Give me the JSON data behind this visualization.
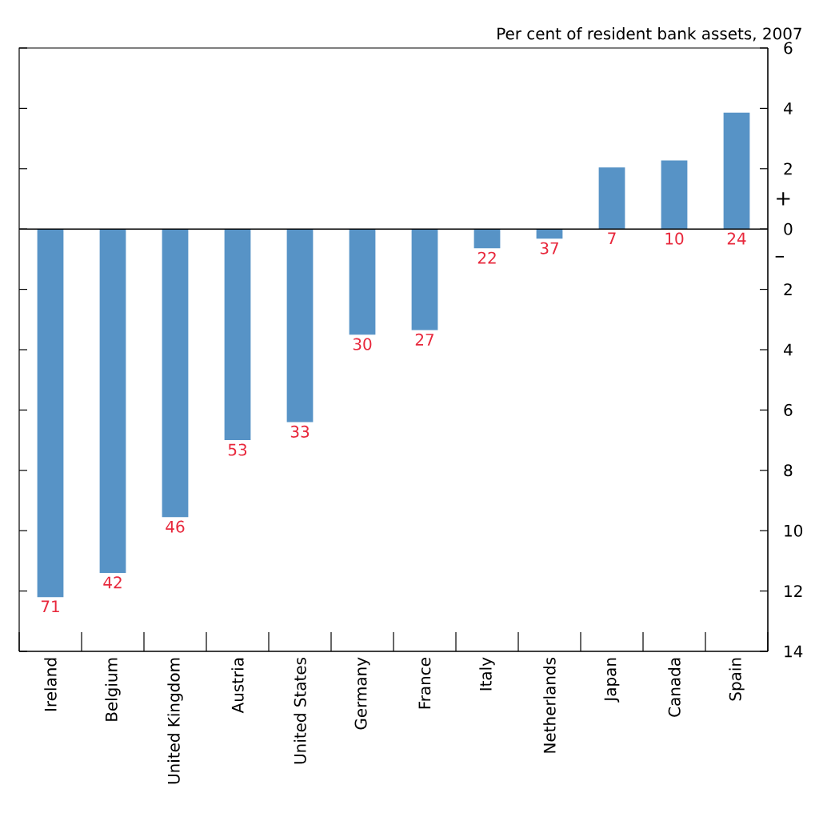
{
  "chart_data": {
    "type": "bar",
    "subtitle": "Per cent of resident bank assets, 2007",
    "categories": [
      "Ireland",
      "Belgium",
      "United Kingdom",
      "Austria",
      "United States",
      "Germany",
      "France",
      "Italy",
      "Netherlands",
      "Japan",
      "Canada",
      "Spain"
    ],
    "values": [
      -12.2,
      -11.4,
      -9.55,
      -7.0,
      -6.4,
      -3.5,
      -3.35,
      -0.64,
      -0.32,
      2.04,
      2.27,
      3.86
    ],
    "color": "#5793c6",
    "ylim": [
      -14,
      6
    ],
    "yticks": [
      6,
      4,
      2,
      0,
      {
        "value": -2,
        "label": "2"
      },
      {
        "value": -4,
        "label": "4"
      },
      {
        "value": -6,
        "label": "6"
      },
      {
        "value": -8,
        "label": "8"
      },
      {
        "value": -10,
        "label": "10"
      },
      {
        "value": -12,
        "label": "12"
      },
      {
        "value": -14,
        "label": "14"
      }
    ],
    "annotations": [
      "+",
      "–",
      {
        "text": "71",
        "x": "Ireland",
        "y": -12.2
      },
      {
        "text": "42",
        "x": "Belgium",
        "y": -11.4
      },
      {
        "text": "46",
        "x": "United Kingdom",
        "y": -9.55
      },
      {
        "text": "53",
        "x": "Austria",
        "y": -7.0
      },
      {
        "text": "33",
        "x": "United States",
        "y": -6.4
      },
      {
        "text": "30",
        "x": "Germany",
        "y": -3.5
      },
      {
        "text": "27",
        "x": "France",
        "y": -3.35
      },
      {
        "text": "22",
        "x": "Italy",
        "y": -0.64
      },
      {
        "text": "37",
        "x": "Netherlands",
        "y": -0.32
      },
      {
        "text": "7",
        "x": "Japan",
        "y": 0
      },
      {
        "text": "10",
        "x": "Canada",
        "y": 0
      },
      {
        "text": "24",
        "x": "Spain",
        "y": 0
      }
    ]
  }
}
